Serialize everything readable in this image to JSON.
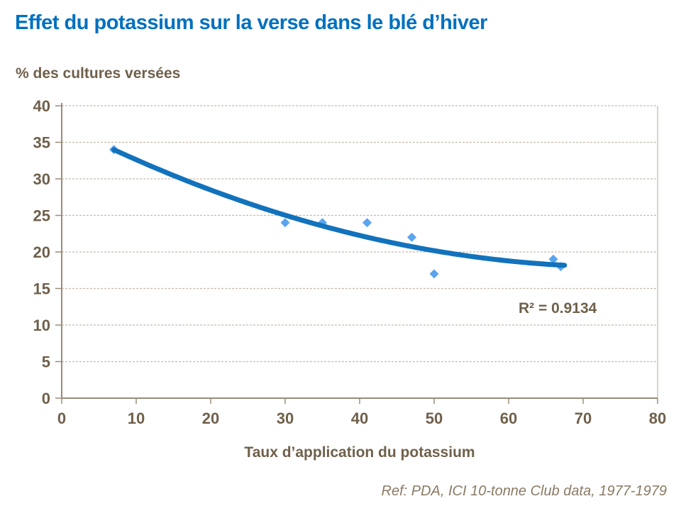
{
  "title": "Effet du potassium sur la verse dans le blé d’hiver",
  "y_axis_heading": "% des cultures versées",
  "r_squared_label": "R² = 0.9134",
  "x_axis_title": "Taux d’application du potassium",
  "reference": "Ref: PDA, ICI 10-tonne Club data, 1977-1979",
  "colors": {
    "title": "#0070C0",
    "text_brown": "#6F604B",
    "axis_line": "#9A8B78",
    "gridline": "#C6BCAC",
    "trend_line": "#1272BC",
    "marker": "#5BA4EE",
    "reference_text": "#8A7A64"
  },
  "chart_data": {
    "type": "scatter",
    "title": "Effet du potassium sur la verse dans le blé d’hiver",
    "xlabel": "Taux d’application du potassium",
    "ylabel": "% des cultures versées",
    "xlim": [
      0,
      80
    ],
    "ylim": [
      0,
      40
    ],
    "x_ticks": [
      0,
      10,
      20,
      30,
      40,
      50,
      60,
      70,
      80
    ],
    "y_ticks": [
      0,
      5,
      10,
      15,
      20,
      25,
      30,
      35,
      40
    ],
    "grid": "horizontal",
    "legend": "none",
    "marker_shape": "diamond",
    "points": [
      {
        "x": 7,
        "y": 34
      },
      {
        "x": 30,
        "y": 24
      },
      {
        "x": 35,
        "y": 24
      },
      {
        "x": 41,
        "y": 24
      },
      {
        "x": 47,
        "y": 22
      },
      {
        "x": 50,
        "y": 17
      },
      {
        "x": 66,
        "y": 19
      },
      {
        "x": 67,
        "y": 18
      }
    ],
    "trendline": {
      "type": "polynomial",
      "order": 2,
      "coefficients": {
        "a": 0.00342,
        "b": -0.5163,
        "c": 37.44
      },
      "x_start": 7,
      "x_end": 67.5,
      "r_squared": 0.9134,
      "label": "R² = 0.9134"
    }
  }
}
